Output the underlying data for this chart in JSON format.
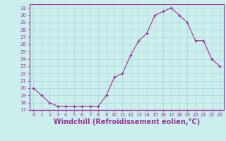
{
  "hours": [
    0,
    1,
    2,
    3,
    4,
    5,
    6,
    7,
    8,
    9,
    10,
    11,
    12,
    13,
    14,
    15,
    16,
    17,
    18,
    19,
    20,
    21,
    22,
    23
  ],
  "values": [
    20,
    19,
    18,
    17.5,
    17.5,
    17.5,
    17.5,
    17.5,
    17.5,
    19,
    21.5,
    22,
    24.5,
    26.5,
    27.5,
    30,
    30.5,
    31,
    30,
    29,
    26.5,
    26.5,
    24,
    23
  ],
  "line_color": "#993399",
  "marker": "+",
  "bg_color": "#cceeed",
  "grid_color": "#aad8d5",
  "axis_color": "#993399",
  "xlabel": "Windchill (Refroidissement éolien,°C)",
  "xlabel_color": "#993399",
  "ylim": [
    17,
    31.5
  ],
  "xlim": [
    -0.5,
    23.5
  ],
  "yticks": [
    17,
    18,
    19,
    20,
    21,
    22,
    23,
    24,
    25,
    26,
    27,
    28,
    29,
    30,
    31
  ],
  "xticks": [
    0,
    1,
    2,
    3,
    4,
    5,
    6,
    7,
    8,
    9,
    10,
    11,
    12,
    13,
    14,
    15,
    16,
    17,
    18,
    19,
    20,
    21,
    22,
    23
  ],
  "tick_color": "#993399",
  "tick_fontsize": 5.0,
  "xlabel_fontsize": 7.0
}
